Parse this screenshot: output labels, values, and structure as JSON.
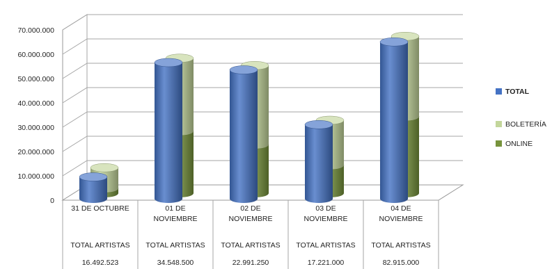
{
  "chart_data": {
    "type": "bar",
    "categories": [
      [
        "31 DE OCTUBRE"
      ],
      [
        "01 DE",
        "NOVIEMBRE"
      ],
      [
        "02 DE",
        "NOVIEMBRE"
      ],
      [
        "03 DE",
        "NOVIEMBRE"
      ],
      [
        "04 DE",
        "NOVIEMBRE"
      ]
    ],
    "series": [
      {
        "name": "TOTAL",
        "values": [
          9000000,
          56000000,
          53000000,
          30500000,
          64500000
        ],
        "color": "#4472c4"
      },
      {
        "name": "BOLETERÍA",
        "values": [
          8500000,
          30000000,
          32500000,
          18500000,
          33000000
        ],
        "color": "#c3d69b"
      },
      {
        "name": "ONLINE",
        "values": [
          2000000,
          25500000,
          20000000,
          11500000,
          31500000
        ],
        "color": "#77933c"
      }
    ],
    "table_rows": [
      [
        "TOTAL ARTISTAS",
        "TOTAL ARTISTAS",
        "TOTAL ARTISTAS",
        "TOTAL ARTISTAS",
        "TOTAL ARTISTAS"
      ],
      [
        "16.492.523",
        "34.548.500",
        "22.991.250",
        "17.221.000",
        "82.915.000"
      ]
    ],
    "y_ticks": [
      "0",
      "10.000.000",
      "20.000.000",
      "30.000.000",
      "40.000.000",
      "50.000.000",
      "60.000.000",
      "70.000.000"
    ],
    "ylim": [
      0,
      70000000
    ],
    "legend_position": "right",
    "grid": true,
    "title": "",
    "xlabel": "",
    "ylabel": ""
  }
}
